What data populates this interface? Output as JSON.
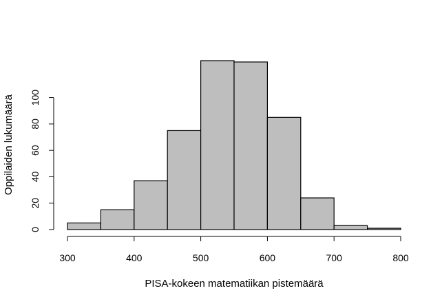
{
  "chart_data": {
    "type": "bar",
    "subtype": "histogram",
    "title": "",
    "xlabel": "PISA-kokeen matematiikan pistemäärä",
    "ylabel": "Oppilaiden lukumäärä",
    "bins": [
      {
        "from": 300,
        "to": 350,
        "count": 5
      },
      {
        "from": 350,
        "to": 400,
        "count": 15
      },
      {
        "from": 400,
        "to": 450,
        "count": 37
      },
      {
        "from": 450,
        "to": 500,
        "count": 75
      },
      {
        "from": 500,
        "to": 550,
        "count": 128
      },
      {
        "from": 550,
        "to": 600,
        "count": 127
      },
      {
        "from": 600,
        "to": 650,
        "count": 85
      },
      {
        "from": 650,
        "to": 700,
        "count": 24
      },
      {
        "from": 700,
        "to": 750,
        "count": 3
      },
      {
        "from": 750,
        "to": 800,
        "count": 1
      }
    ],
    "xlim": [
      300,
      800
    ],
    "ylim": [
      0,
      120
    ],
    "xticks": [
      300,
      400,
      500,
      600,
      700,
      800
    ],
    "yticks": [
      0,
      20,
      40,
      60,
      80,
      100
    ],
    "bar_color": "#bebebe",
    "edge_color": "#000000",
    "grid": false,
    "legend": "none"
  }
}
